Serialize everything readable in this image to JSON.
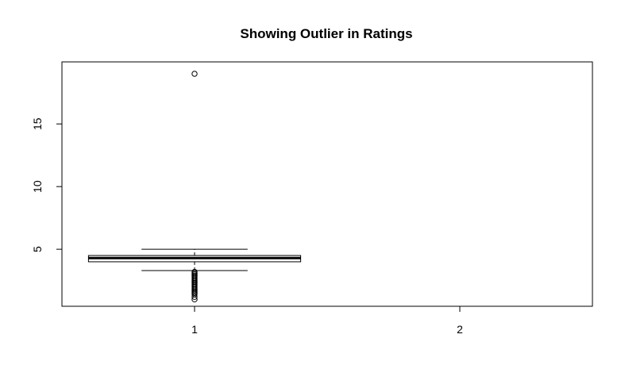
{
  "chart_data": {
    "type": "box",
    "title": "Showing Outlier in Ratings",
    "xlabel": "",
    "ylabel": "",
    "categories": [
      "1",
      "2"
    ],
    "x_ticks": [
      "1",
      "2"
    ],
    "y_ticks": [
      5,
      10,
      15
    ],
    "ylim": [
      0.45,
      19.95
    ],
    "grid": false,
    "legend": "none",
    "boxes": [
      {
        "category": "1",
        "whisker_low": 3.3,
        "q1": 4.0,
        "median": 4.3,
        "q3": 4.5,
        "whisker_high": 5.0,
        "outliers": [
          19.0,
          3.2,
          3.1,
          3.0,
          2.9,
          2.8,
          2.7,
          2.6,
          2.5,
          2.4,
          2.3,
          2.2,
          2.1,
          2.0,
          1.9,
          1.8,
          1.7,
          1.6,
          1.5,
          1.4,
          1.2,
          1.0
        ]
      }
    ]
  }
}
